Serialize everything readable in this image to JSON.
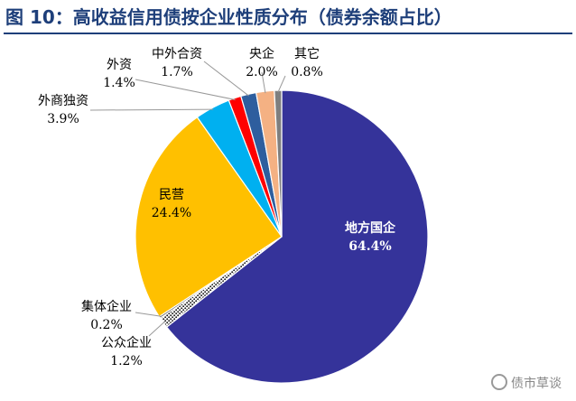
{
  "header": {
    "title": "图 10：高收益信用债按企业性质分布（债券余额占比）"
  },
  "watermark": {
    "text": "债市草谈",
    "icon": "wechat-icon"
  },
  "chart_data": {
    "type": "pie",
    "title": "",
    "slices": [
      {
        "name": "地方国企",
        "value": 64.4,
        "label": "64.4%",
        "color": "#35339a"
      },
      {
        "name": "公众企业",
        "value": 1.2,
        "label": "1.2%",
        "color": "#2a2a2a",
        "pattern": "dots"
      },
      {
        "name": "集体企业",
        "value": 0.2,
        "label": "0.2%",
        "color": "#555555"
      },
      {
        "name": "民营",
        "value": 24.4,
        "label": "24.4%",
        "color": "#ffc000"
      },
      {
        "name": "外商独资",
        "value": 3.9,
        "label": "3.9%",
        "color": "#00b0f0"
      },
      {
        "name": "外资",
        "value": 1.4,
        "label": "1.4%",
        "color": "#ff0000"
      },
      {
        "name": "中外合资",
        "value": 1.7,
        "label": "1.7%",
        "color": "#2e5e9e"
      },
      {
        "name": "央企",
        "value": 2.0,
        "label": "2.0%",
        "color": "#f4b183"
      },
      {
        "name": "其它",
        "value": 0.8,
        "label": "0.8%",
        "color": "#7f7f7f"
      }
    ]
  }
}
